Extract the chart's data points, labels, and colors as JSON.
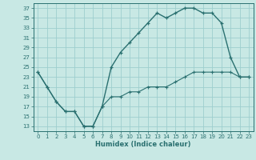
{
  "xlabel": "Humidex (Indice chaleur)",
  "xlim": [
    -0.5,
    23.5
  ],
  "ylim": [
    12,
    38
  ],
  "yticks": [
    13,
    15,
    17,
    19,
    21,
    23,
    25,
    27,
    29,
    31,
    33,
    35,
    37
  ],
  "xticks": [
    0,
    1,
    2,
    3,
    4,
    5,
    6,
    7,
    8,
    9,
    10,
    11,
    12,
    13,
    14,
    15,
    16,
    17,
    18,
    19,
    20,
    21,
    22,
    23
  ],
  "bg_color": "#c8e8e4",
  "grid_color": "#9ecece",
  "line_color": "#2a7070",
  "line1_x": [
    0,
    1,
    2,
    3,
    4,
    5,
    6,
    7,
    8,
    9,
    10,
    11,
    12,
    13,
    14,
    15,
    16,
    17,
    18,
    19,
    20,
    21,
    22,
    23
  ],
  "line1_y": [
    24,
    21,
    18,
    16,
    16,
    13,
    13,
    17,
    25,
    28,
    30,
    32,
    34,
    36,
    35,
    36,
    37,
    37,
    36,
    36,
    34,
    27,
    23,
    23
  ],
  "line2_x": [
    0,
    1,
    2,
    3,
    4,
    5,
    6,
    7,
    8,
    9,
    10,
    11,
    12,
    13,
    14,
    15,
    16,
    17,
    18,
    19,
    20,
    21,
    22,
    23
  ],
  "line2_y": [
    24,
    21,
    18,
    16,
    16,
    13,
    13,
    17,
    19,
    19,
    20,
    20,
    21,
    21,
    21,
    22,
    23,
    24,
    24,
    24,
    24,
    24,
    23,
    23
  ]
}
